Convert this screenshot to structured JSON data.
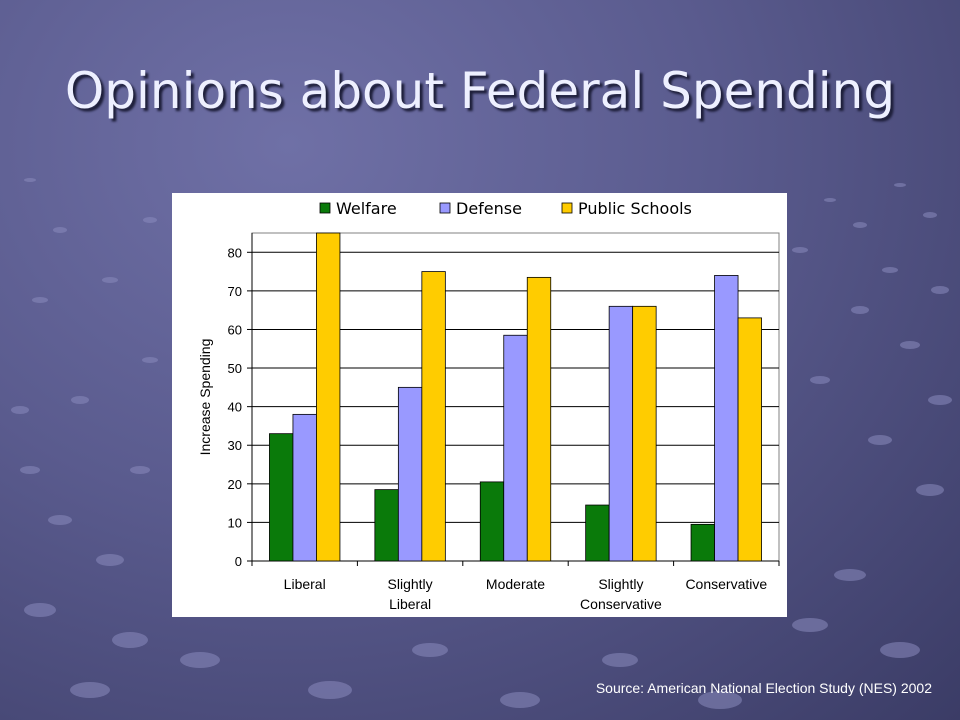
{
  "slide": {
    "title": "Opinions about Federal Spending",
    "source": "Source: American National Election Study (NES) 2002"
  },
  "colors": {
    "Welfare": "#0a7a0a",
    "Defense": "#9999ff",
    "Public Schools": "#ffcc00"
  },
  "chart_data": {
    "type": "bar",
    "title": "",
    "xlabel": "",
    "ylabel": "Increase Spending",
    "ylim": [
      0,
      85
    ],
    "yticks": [
      0,
      10,
      20,
      30,
      40,
      50,
      60,
      70,
      80
    ],
    "grid": true,
    "legend": "top",
    "categories": [
      [
        "Liberal"
      ],
      [
        "Slightly",
        "Liberal"
      ],
      [
        "Moderate"
      ],
      [
        "Slightly",
        "Conservative"
      ],
      [
        "Conservative"
      ]
    ],
    "series": [
      {
        "name": "Welfare",
        "values": [
          33,
          18.5,
          20.5,
          14.5,
          9.5
        ]
      },
      {
        "name": "Defense",
        "values": [
          38,
          45,
          58.5,
          66,
          74
        ]
      },
      {
        "name": "Public Schools",
        "values": [
          85,
          75,
          73.5,
          66,
          63
        ]
      }
    ]
  }
}
